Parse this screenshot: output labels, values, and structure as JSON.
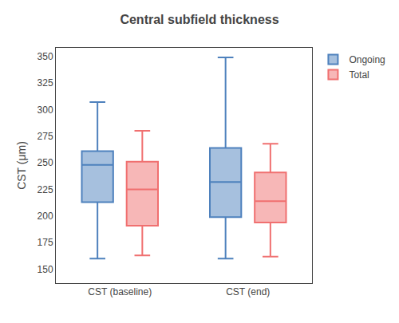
{
  "chart_data": {
    "type": "box",
    "title": "Central subfield thickness",
    "ylabel": "CST (μm)",
    "categories": [
      "CST (baseline)",
      "CST (end)"
    ],
    "series": [
      {
        "name": "Ongoing",
        "color": "#4e81bd",
        "whisker_low": [
          160,
          160
        ],
        "q1": [
          213,
          199
        ],
        "median": [
          248,
          232
        ],
        "q3": [
          261,
          264
        ],
        "whisker_high": [
          307,
          349
        ]
      },
      {
        "name": "Total",
        "color": "#f07070",
        "whisker_low": [
          163,
          162
        ],
        "q1": [
          191,
          194
        ],
        "median": [
          225,
          214
        ],
        "q3": [
          251,
          241
        ],
        "whisker_high": [
          280,
          268
        ]
      }
    ],
    "ylim": [
      137,
      358
    ],
    "yticks": [
      150,
      175,
      200,
      225,
      250,
      275,
      300,
      325,
      350
    ],
    "grid": false,
    "legend": "upper right"
  }
}
